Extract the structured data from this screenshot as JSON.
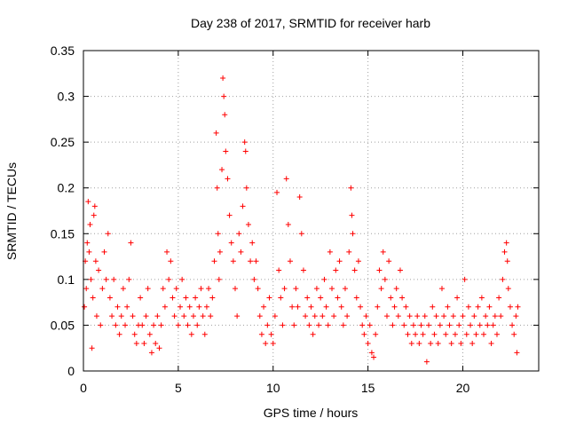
{
  "chart_data": {
    "type": "scatter",
    "title": "Day 238 of 2017, SRMTID for receiver harb",
    "xlabel": "GPS time / hours",
    "ylabel": "SRMTID / TECUs",
    "xlim": [
      0,
      24
    ],
    "ylim": [
      0,
      0.35
    ],
    "grid": true,
    "marker": "+",
    "color": "#ff0000",
    "xticks": [
      0,
      5,
      10,
      15,
      20
    ],
    "xtick_labels": [
      "0",
      "5",
      "10",
      "15",
      "20"
    ],
    "yticks": [
      0,
      0.05,
      0.1,
      0.15,
      0.2,
      0.25,
      0.3,
      0.35
    ],
    "ytick_labels": [
      "0",
      "0.05",
      "0.1",
      "0.15",
      "0.2",
      "0.25",
      "0.3",
      "0.35"
    ],
    "series": [
      {
        "name": "SRMTID",
        "points": [
          [
            0.05,
            0.07
          ],
          [
            0.1,
            0.12
          ],
          [
            0.15,
            0.09
          ],
          [
            0.2,
            0.14
          ],
          [
            0.25,
            0.185
          ],
          [
            0.3,
            0.13
          ],
          [
            0.35,
            0.16
          ],
          [
            0.4,
            0.1
          ],
          [
            0.45,
            0.025
          ],
          [
            0.5,
            0.08
          ],
          [
            0.55,
            0.17
          ],
          [
            0.6,
            0.18
          ],
          [
            0.65,
            0.12
          ],
          [
            0.7,
            0.06
          ],
          [
            0.8,
            0.11
          ],
          [
            0.9,
            0.05
          ],
          [
            1.0,
            0.09
          ],
          [
            1.1,
            0.13
          ],
          [
            1.2,
            0.1
          ],
          [
            1.3,
            0.15
          ],
          [
            1.4,
            0.08
          ],
          [
            1.5,
            0.06
          ],
          [
            1.6,
            0.1
          ],
          [
            1.7,
            0.05
          ],
          [
            1.8,
            0.07
          ],
          [
            1.9,
            0.04
          ],
          [
            2.0,
            0.06
          ],
          [
            2.1,
            0.09
          ],
          [
            2.2,
            0.05
          ],
          [
            2.3,
            0.07
          ],
          [
            2.4,
            0.1
          ],
          [
            2.5,
            0.14
          ],
          [
            2.6,
            0.06
          ],
          [
            2.7,
            0.04
          ],
          [
            2.8,
            0.03
          ],
          [
            2.9,
            0.05
          ],
          [
            3.0,
            0.08
          ],
          [
            3.1,
            0.05
          ],
          [
            3.2,
            0.03
          ],
          [
            3.3,
            0.06
          ],
          [
            3.4,
            0.09
          ],
          [
            3.5,
            0.04
          ],
          [
            3.6,
            0.02
          ],
          [
            3.7,
            0.05
          ],
          [
            3.8,
            0.03
          ],
          [
            3.9,
            0.06
          ],
          [
            4.0,
            0.025
          ],
          [
            4.1,
            0.05
          ],
          [
            4.2,
            0.09
          ],
          [
            4.3,
            0.07
          ],
          [
            4.4,
            0.13
          ],
          [
            4.5,
            0.1
          ],
          [
            4.6,
            0.12
          ],
          [
            4.7,
            0.08
          ],
          [
            4.8,
            0.06
          ],
          [
            4.9,
            0.09
          ],
          [
            5.0,
            0.05
          ],
          [
            5.1,
            0.07
          ],
          [
            5.2,
            0.1
          ],
          [
            5.3,
            0.06
          ],
          [
            5.4,
            0.08
          ],
          [
            5.5,
            0.05
          ],
          [
            5.6,
            0.07
          ],
          [
            5.7,
            0.04
          ],
          [
            5.8,
            0.06
          ],
          [
            5.9,
            0.08
          ],
          [
            6.0,
            0.05
          ],
          [
            6.1,
            0.07
          ],
          [
            6.2,
            0.09
          ],
          [
            6.3,
            0.06
          ],
          [
            6.4,
            0.04
          ],
          [
            6.5,
            0.07
          ],
          [
            6.6,
            0.09
          ],
          [
            6.7,
            0.06
          ],
          [
            6.8,
            0.08
          ],
          [
            6.9,
            0.12
          ],
          [
            7.0,
            0.26
          ],
          [
            7.05,
            0.2
          ],
          [
            7.1,
            0.15
          ],
          [
            7.15,
            0.1
          ],
          [
            7.2,
            0.13
          ],
          [
            7.3,
            0.22
          ],
          [
            7.35,
            0.32
          ],
          [
            7.4,
            0.3
          ],
          [
            7.45,
            0.28
          ],
          [
            7.5,
            0.24
          ],
          [
            7.6,
            0.21
          ],
          [
            7.7,
            0.17
          ],
          [
            7.8,
            0.14
          ],
          [
            7.9,
            0.12
          ],
          [
            8.0,
            0.09
          ],
          [
            8.1,
            0.06
          ],
          [
            8.2,
            0.15
          ],
          [
            8.3,
            0.13
          ],
          [
            8.4,
            0.18
          ],
          [
            8.5,
            0.25
          ],
          [
            8.55,
            0.24
          ],
          [
            8.6,
            0.2
          ],
          [
            8.7,
            0.16
          ],
          [
            8.8,
            0.12
          ],
          [
            8.9,
            0.14
          ],
          [
            9.0,
            0.1
          ],
          [
            9.1,
            0.12
          ],
          [
            9.2,
            0.09
          ],
          [
            9.3,
            0.06
          ],
          [
            9.4,
            0.04
          ],
          [
            9.5,
            0.07
          ],
          [
            9.6,
            0.03
          ],
          [
            9.7,
            0.05
          ],
          [
            9.8,
            0.08
          ],
          [
            9.9,
            0.04
          ],
          [
            10.0,
            0.03
          ],
          [
            10.1,
            0.06
          ],
          [
            10.2,
            0.195
          ],
          [
            10.3,
            0.11
          ],
          [
            10.4,
            0.08
          ],
          [
            10.5,
            0.05
          ],
          [
            10.6,
            0.09
          ],
          [
            10.7,
            0.21
          ],
          [
            10.8,
            0.16
          ],
          [
            10.9,
            0.12
          ],
          [
            11.0,
            0.07
          ],
          [
            11.1,
            0.05
          ],
          [
            11.2,
            0.09
          ],
          [
            11.3,
            0.07
          ],
          [
            11.4,
            0.19
          ],
          [
            11.5,
            0.15
          ],
          [
            11.6,
            0.11
          ],
          [
            11.7,
            0.06
          ],
          [
            11.8,
            0.08
          ],
          [
            11.9,
            0.05
          ],
          [
            12.0,
            0.07
          ],
          [
            12.1,
            0.04
          ],
          [
            12.2,
            0.06
          ],
          [
            12.3,
            0.09
          ],
          [
            12.4,
            0.05
          ],
          [
            12.5,
            0.08
          ],
          [
            12.6,
            0.06
          ],
          [
            12.7,
            0.1
          ],
          [
            12.8,
            0.07
          ],
          [
            12.9,
            0.05
          ],
          [
            13.0,
            0.13
          ],
          [
            13.1,
            0.09
          ],
          [
            13.2,
            0.06
          ],
          [
            13.3,
            0.11
          ],
          [
            13.4,
            0.08
          ],
          [
            13.5,
            0.12
          ],
          [
            13.6,
            0.07
          ],
          [
            13.7,
            0.05
          ],
          [
            13.8,
            0.09
          ],
          [
            13.9,
            0.06
          ],
          [
            14.0,
            0.13
          ],
          [
            14.1,
            0.2
          ],
          [
            14.15,
            0.17
          ],
          [
            14.2,
            0.15
          ],
          [
            14.3,
            0.11
          ],
          [
            14.4,
            0.08
          ],
          [
            14.5,
            0.12
          ],
          [
            14.6,
            0.07
          ],
          [
            14.7,
            0.05
          ],
          [
            14.8,
            0.04
          ],
          [
            14.9,
            0.06
          ],
          [
            15.0,
            0.03
          ],
          [
            15.1,
            0.05
          ],
          [
            15.2,
            0.02
          ],
          [
            15.3,
            0.015
          ],
          [
            15.4,
            0.04
          ],
          [
            15.5,
            0.07
          ],
          [
            15.6,
            0.11
          ],
          [
            15.7,
            0.09
          ],
          [
            15.8,
            0.13
          ],
          [
            15.9,
            0.1
          ],
          [
            16.0,
            0.06
          ],
          [
            16.1,
            0.12
          ],
          [
            16.2,
            0.08
          ],
          [
            16.3,
            0.05
          ],
          [
            16.4,
            0.07
          ],
          [
            16.5,
            0.09
          ],
          [
            16.6,
            0.06
          ],
          [
            16.7,
            0.11
          ],
          [
            16.8,
            0.08
          ],
          [
            16.9,
            0.05
          ],
          [
            17.0,
            0.07
          ],
          [
            17.1,
            0.04
          ],
          [
            17.2,
            0.06
          ],
          [
            17.3,
            0.03
          ],
          [
            17.4,
            0.05
          ],
          [
            17.5,
            0.04
          ],
          [
            17.6,
            0.06
          ],
          [
            17.7,
            0.03
          ],
          [
            17.8,
            0.05
          ],
          [
            17.9,
            0.04
          ],
          [
            18.0,
            0.06
          ],
          [
            18.1,
            0.01
          ],
          [
            18.2,
            0.05
          ],
          [
            18.3,
            0.03
          ],
          [
            18.4,
            0.07
          ],
          [
            18.5,
            0.04
          ],
          [
            18.6,
            0.06
          ],
          [
            18.7,
            0.03
          ],
          [
            18.8,
            0.05
          ],
          [
            18.9,
            0.09
          ],
          [
            19.0,
            0.06
          ],
          [
            19.1,
            0.04
          ],
          [
            19.2,
            0.07
          ],
          [
            19.3,
            0.05
          ],
          [
            19.4,
            0.03
          ],
          [
            19.5,
            0.06
          ],
          [
            19.6,
            0.04
          ],
          [
            19.7,
            0.08
          ],
          [
            19.8,
            0.05
          ],
          [
            19.9,
            0.03
          ],
          [
            20.0,
            0.06
          ],
          [
            20.1,
            0.1
          ],
          [
            20.2,
            0.04
          ],
          [
            20.3,
            0.07
          ],
          [
            20.4,
            0.05
          ],
          [
            20.5,
            0.03
          ],
          [
            20.6,
            0.06
          ],
          [
            20.7,
            0.04
          ],
          [
            20.8,
            0.07
          ],
          [
            20.9,
            0.05
          ],
          [
            21.0,
            0.08
          ],
          [
            21.1,
            0.04
          ],
          [
            21.2,
            0.06
          ],
          [
            21.3,
            0.05
          ],
          [
            21.4,
            0.07
          ],
          [
            21.5,
            0.03
          ],
          [
            21.6,
            0.05
          ],
          [
            21.7,
            0.06
          ],
          [
            21.8,
            0.04
          ],
          [
            21.9,
            0.08
          ],
          [
            22.0,
            0.06
          ],
          [
            22.1,
            0.1
          ],
          [
            22.2,
            0.13
          ],
          [
            22.3,
            0.14
          ],
          [
            22.35,
            0.12
          ],
          [
            22.4,
            0.09
          ],
          [
            22.5,
            0.07
          ],
          [
            22.6,
            0.05
          ],
          [
            22.7,
            0.04
          ],
          [
            22.8,
            0.06
          ],
          [
            22.85,
            0.02
          ],
          [
            22.9,
            0.07
          ]
        ]
      }
    ]
  }
}
